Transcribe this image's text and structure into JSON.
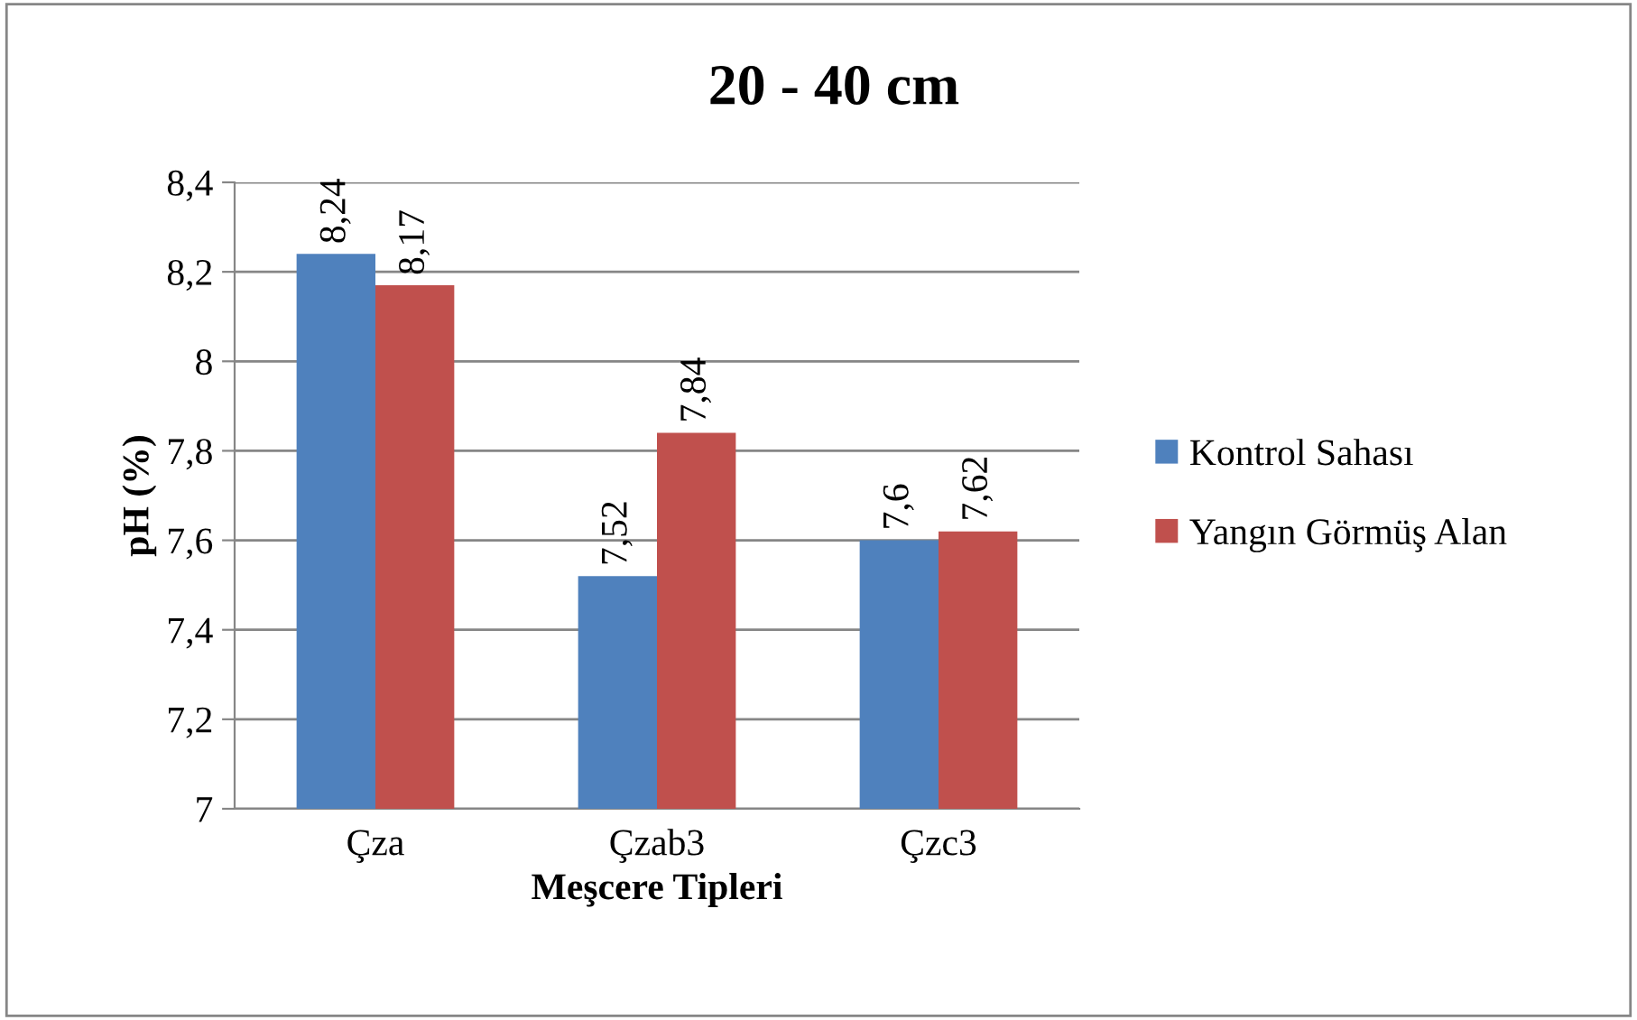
{
  "chart_data": {
    "type": "bar",
    "title": "20 - 40 cm",
    "xlabel": "Meşcere Tipleri",
    "ylabel": "pH (%)",
    "categories": [
      "Çza",
      "Çzab3",
      "Çzc3"
    ],
    "series": [
      {
        "name": "Kontrol Sahası",
        "color": "#4f81bd",
        "values": [
          8.24,
          7.52,
          7.6
        ],
        "value_labels": [
          "8,24",
          "7,52",
          "7,6"
        ]
      },
      {
        "name": "Yangın Görmüş Alan",
        "color": "#c0504d",
        "values": [
          8.17,
          7.84,
          7.62
        ],
        "value_labels": [
          "8,17",
          "7,84",
          "7,62"
        ]
      }
    ],
    "ylim": [
      7,
      8.4
    ],
    "yticks": [
      {
        "value": 7,
        "label": "7"
      },
      {
        "value": 7.2,
        "label": "7,2"
      },
      {
        "value": 7.4,
        "label": "7,4"
      },
      {
        "value": 7.6,
        "label": "7,6"
      },
      {
        "value": 7.8,
        "label": "7,8"
      },
      {
        "value": 8,
        "label": "8"
      },
      {
        "value": 8.2,
        "label": "8,2"
      },
      {
        "value": 8.4,
        "label": "8,4"
      }
    ],
    "grid": "y",
    "legend": "right"
  }
}
